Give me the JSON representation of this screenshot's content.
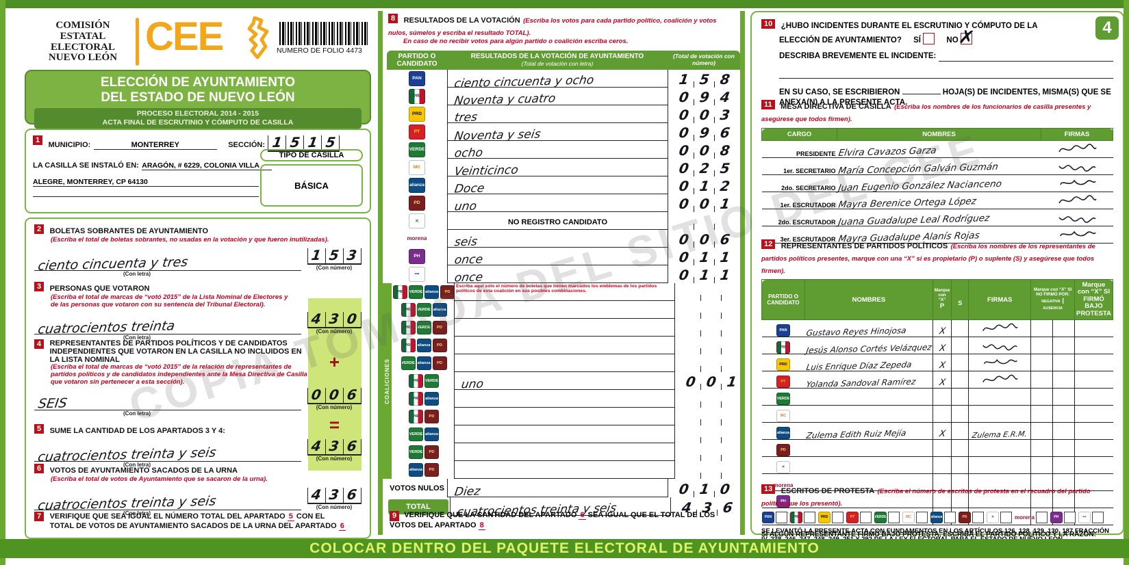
{
  "watermark": "COPIA TOMADA DEL SITIO DEL CEE",
  "footer_bar": "COLOCAR DENTRO DEL PAQUETE ELECTORAL DE AYUNTAMIENTO",
  "page_badge": "4",
  "labels": {
    "con_letra": "(Con letra)",
    "con_numero": "(Con número)"
  },
  "header": {
    "org_lines": [
      "COMISIÓN",
      "ESTATAL",
      "ELECTORAL",
      "NUEVO LEÓN"
    ],
    "logo_text": "CEE",
    "folio_label": "NUMERO DE FOLIO 4473",
    "title1": "ELECCIÓN DE AYUNTAMIENTO",
    "title2": "DEL ESTADO DE NUEVO LEÓN",
    "subtitle1": "PROCESO ELECTORAL  2014 - 2015",
    "subtitle2": "ACTA FINAL DE ESCRUTINIO Y CÓMPUTO DE CASILLA"
  },
  "parties": [
    {
      "id": "pan",
      "name": "PAN",
      "abbr": "PAN",
      "bg": "#1b3f94",
      "fg": "#ffffff"
    },
    {
      "id": "pri",
      "name": "PRI",
      "abbr": "PRI",
      "bg": "#ffffff",
      "fg": "#333333",
      "cls": "tri"
    },
    {
      "id": "prd",
      "name": "PRD",
      "abbr": "PRD",
      "bg": "#f6c700",
      "fg": "#000000"
    },
    {
      "id": "pt",
      "name": "PT",
      "abbr": "PT",
      "bg": "#d42128",
      "fg": "#ffd500"
    },
    {
      "id": "verde",
      "name": "PARTIDO VERDE",
      "abbr": "VERDE",
      "bg": "#1e7a34",
      "fg": "#ffffff"
    },
    {
      "id": "mc",
      "name": "MOVIMIENTO CIUDADANO",
      "abbr": "MC",
      "bg": "#ffffff",
      "fg": "#f57921"
    },
    {
      "id": "alianza",
      "name": "NUEVA ALIANZA",
      "abbr": "alianza",
      "bg": "#0f4c81",
      "fg": "#ffffff"
    },
    {
      "id": "democrata",
      "name": "DEMÓCRATA",
      "abbr": "PD",
      "bg": "#7a1f1f",
      "fg": "#ffd27f"
    },
    {
      "id": "cruzada",
      "name": "CRUZADA CIUDADANA",
      "abbr": "✕",
      "bg": "#ffffff",
      "fg": "#2a7a2a"
    },
    {
      "id": "morena",
      "name": "morena",
      "abbr": "morena",
      "bg": "transparent",
      "fg": "#8a1538",
      "cls": "textonly"
    },
    {
      "id": "humanista",
      "name": "HUMANISTA",
      "abbr": "PH",
      "bg": "#7a2d8c",
      "fg": "#ffffff"
    },
    {
      "id": "encuentro",
      "name": "ENCUENTRO SOCIAL",
      "abbr": "•••",
      "bg": "#ffffff",
      "fg": "#223f8f"
    }
  ],
  "section1": {
    "num": "1",
    "municipio_label": "MUNICIPIO:",
    "municipio_value": "MONTERREY",
    "seccion_label": "SECCIÓN:",
    "seccion_digits": "1515",
    "casilla_label": "LA CASILLA SE INSTALÓ EN:",
    "casilla_line1": "ARAGÓN, # 6229, COLONIA VILLA",
    "casilla_line2": "ALEGRE, MONTERREY, CP 64130",
    "tipo_casilla_label": "TIPO DE CASILLA",
    "tipo_casilla_value": "BÁSICA"
  },
  "section2": {
    "num": "2",
    "title": "BOLETAS SOBRANTES DE AYUNTAMIENTO",
    "hint": "(Escriba el total de boletas sobrantes, no usadas en la votación y que fueron inutilizadas).",
    "letra": "ciento cincuenta y tres",
    "numero": "153"
  },
  "section3": {
    "num": "3",
    "title": "PERSONAS QUE VOTARON",
    "hint": "(Escriba el total de marcas de “votó 2015” de la Lista Nominal de Electores y de las personas que votaron con su sentencia del Tribunal Electoral).",
    "letra": "cuatrocientos treinta",
    "numero": "430"
  },
  "section4": {
    "num": "4",
    "title": "REPRESENTANTES DE PARTIDOS POLÍTICOS Y DE CANDIDATOS INDEPENDIENTES QUE VOTARON EN LA CASILLA NO INCLUIDOS EN LA LISTA NOMINAL",
    "hint": "(Escriba el total de marcas de “votó 2015” de la relación de representantes de partidos políticos y de candidatos independientes ante la Mesa Directiva de Casilla que votaron sin pertenecer a esta sección).",
    "letra": "SEIS",
    "numero": "006",
    "plus_symbol": "+"
  },
  "section5": {
    "num": "5",
    "title": "SUME LA CANTIDAD DE LOS APARTADOS 3 Y 4:",
    "letra": "cuatrocientos treinta y seis",
    "numero": "436",
    "equals_symbol": "="
  },
  "section6": {
    "num": "6",
    "title": "VOTOS DE AYUNTAMIENTO SACADOS DE LA URNA",
    "hint": "(Escriba el total de votos de Ayuntamiento que se sacaron de la urna).",
    "letra": "cuatrocientos treinta y seis",
    "numero": "436"
  },
  "section7": {
    "num": "7",
    "text1": "VERIFIQUE QUE SEA IGUAL EL NÚMERO TOTAL DEL APARTADO",
    "ref1": "5",
    "text2": "CON EL TOTAL DE VOTOS DE AYUNTAMIENTO SACADOS DE LA URNA DEL APARTADO",
    "ref2": "6"
  },
  "section8": {
    "num": "8",
    "title": "RESULTADOS DE LA VOTACIÓN",
    "hint1": "(Escriba los votos para cada partido político, coalición y votos nulos, súmelos y escriba el resultado TOTAL).",
    "hint2": "En caso de no recibir votos para algún partido o coalición escriba ceros.",
    "col1": "PARTIDO O CANDIDATO",
    "col2": "RESULTADOS DE LA VOTACIÓN DE AYUNTAMIENTO",
    "col2b": "(Total de votación con letra)",
    "col3": "(Total de votación con número)",
    "rows": [
      {
        "logos": [
          "pan"
        ],
        "letra": "ciento cincuenta y ocho",
        "numero": "158"
      },
      {
        "logos": [
          "pri"
        ],
        "letra": "Noventa y cuatro",
        "numero": "094"
      },
      {
        "logos": [
          "prd"
        ],
        "letra": "tres",
        "numero": "003"
      },
      {
        "logos": [
          "pt"
        ],
        "letra": "Noventa y seis",
        "numero": "096"
      },
      {
        "logos": [
          "verde"
        ],
        "letra": "ocho",
        "numero": "008"
      },
      {
        "logos": [
          "mc"
        ],
        "letra": "Veinticinco",
        "numero": "025"
      },
      {
        "logos": [
          "alianza"
        ],
        "letra": "Doce",
        "numero": "012"
      },
      {
        "logos": [
          "democrata"
        ],
        "letra": "uno",
        "numero": "001"
      },
      {
        "logos": [
          "cruzada"
        ],
        "special": "NO REGISTRO CANDIDATO",
        "numero": ""
      },
      {
        "logos": [
          "morena"
        ],
        "letra": "seis",
        "numero": "006"
      },
      {
        "logos": [
          "humanista"
        ],
        "letra": "once",
        "numero": "011"
      },
      {
        "logos": [
          "encuentro"
        ],
        "letra": "once",
        "numero": "011"
      }
    ],
    "coaliciones": {
      "side_label": "COALICIONES",
      "note": "Escriba aquí solo el número de boletas que tienen marcados los emblemas de los partidos políticos de esta coalición en sus posibles combinaciones.",
      "rows": [
        {
          "logos": [
            "pri",
            "verde",
            "alianza",
            "democrata"
          ],
          "letra": "",
          "numero": ""
        },
        {
          "logos": [
            "pri",
            "verde",
            "alianza"
          ],
          "letra": "",
          "numero": ""
        },
        {
          "logos": [
            "pri",
            "verde",
            "democrata"
          ],
          "letra": "",
          "numero": ""
        },
        {
          "logos": [
            "pri",
            "alianza",
            "democrata"
          ],
          "letra": "",
          "numero": ""
        },
        {
          "logos": [
            "verde",
            "alianza",
            "democrata"
          ],
          "letra": "",
          "numero": ""
        },
        {
          "logos": [
            "pri",
            "verde"
          ],
          "letra": "uno",
          "numero": "001"
        },
        {
          "logos": [
            "pri",
            "alianza"
          ],
          "letra": "",
          "numero": ""
        },
        {
          "logos": [
            "pri",
            "democrata"
          ],
          "letra": "",
          "numero": ""
        },
        {
          "logos": [
            "verde",
            "alianza"
          ],
          "letra": "",
          "numero": ""
        },
        {
          "logos": [
            "verde",
            "democrata"
          ],
          "letra": "",
          "numero": ""
        },
        {
          "logos": [
            "alianza",
            "democrata"
          ],
          "letra": "",
          "numero": ""
        }
      ]
    },
    "votos_nulos": {
      "label": "VOTOS NULOS",
      "letra": "Diez",
      "numero": "010"
    },
    "total": {
      "label": "TOTAL",
      "letra": "cuatrocientos treinta y seis",
      "numero": "436"
    }
  },
  "section9": {
    "num": "9",
    "text1": "VERIFIQUE QUE LA CANTIDAD DEL APARTADO",
    "ref1": "6",
    "text2": "SEA IGUAL QUE EL TOTAL DE LOS VOTOS DEL APARTADO",
    "ref2": "8"
  },
  "section10": {
    "num": "10",
    "question1": "¿HUBO INCIDENTES DURANTE EL ESCRUTINIO Y CÓMPUTO DE LA",
    "question2": "ELECCIÓN DE AYUNTAMIENTO?",
    "si_label": "SÍ",
    "no_label": "NO",
    "no_checked": true,
    "describe_label": "DESCRIBA BREVEMENTE EL INCIDENTE:",
    "encase1": "EN SU CASO, SE ESCRIBIERON",
    "encase2": "HOJA(S) DE INCIDENTES, MISMA(S) QUE SE",
    "encase3": "ANEXA(N) A LA PRESENTE ACTA."
  },
  "section11": {
    "num": "11",
    "title": "MESA DIRECTIVA DE CASILLA",
    "hint": "(Escriba los nombres de los funcionarios de casilla presentes y asegúrese que todos firmen).",
    "headers": {
      "cargo": "CARGO",
      "nombres": "NOMBRES",
      "firmas": "FIRMAS"
    },
    "rows": [
      {
        "cargo": "PRESIDENTE",
        "nombre": "Elvira Cavazos Garza",
        "firma": true
      },
      {
        "cargo": "1er. SECRETARIO",
        "nombre": "María Concepción Galván Guzmán",
        "firma": true
      },
      {
        "cargo": "2do. SECRETARIO",
        "nombre": "Juan Eugenio González Nacianceno",
        "firma": true
      },
      {
        "cargo": "1er. ESCRUTADOR",
        "nombre": "Mayra Berenice Ortega López",
        "firma": true
      },
      {
        "cargo": "2do. ESCRUTADOR",
        "nombre": "Juana Guadalupe Leal Rodríguez",
        "firma": true
      },
      {
        "cargo": "3er. ESCRUTADOR",
        "nombre": "Mayra Guadalupe Alanís Rojas",
        "firma": true
      }
    ]
  },
  "section12": {
    "num": "12",
    "title": "REPRESENTANTES DE PARTIDOS POLÍTICOS",
    "hint": "(Escriba los nombres de los representantes de partidos políticos presentes, marque con una “X” si es propietario (P) o suplente (S) y asegúrese que todos firmen).",
    "headers": {
      "partido": "PARTIDO O CANDIDATO",
      "nombres": "NOMBRES",
      "marque": "Marque con “X”",
      "p": "P",
      "s": "S",
      "firmas": "FIRMAS",
      "nofirmo": "Marque con “X” SI NO FIRMÓ POR:",
      "negativa": "NEGATIVA",
      "ausencia": "AUSENCIA",
      "protesta": "Marque con “X” SI FIRMÓ BAJO PROTESTA"
    },
    "rows": [
      {
        "party": "pan",
        "nombre": "Gustavo Reyes Hinojosa",
        "p": "X",
        "s": "",
        "firma": true
      },
      {
        "party": "pri",
        "nombre": "Jesús Alonso Cortés Velázquez",
        "p": "X",
        "s": "",
        "firma": true
      },
      {
        "party": "prd",
        "nombre": "Luis Enrique Díaz Zepeda",
        "p": "X",
        "s": "",
        "firma": true
      },
      {
        "party": "pt",
        "nombre": "Yolanda Sandoval Ramírez",
        "p": "X",
        "s": "",
        "firma": true
      },
      {
        "party": "verde",
        "nombre": "",
        "p": "",
        "s": "",
        "firma": false
      },
      {
        "party": "mc",
        "nombre": "",
        "p": "",
        "s": "",
        "firma": false
      },
      {
        "party": "alianza",
        "nombre": "Zulema Edith Ruiz Mejía",
        "p": "X",
        "s": "",
        "firma": true,
        "firma_text": "Zulema E.R.M."
      },
      {
        "party": "democrata",
        "nombre": "",
        "p": "",
        "s": "",
        "firma": false
      },
      {
        "party": "cruzada",
        "nombre": "",
        "p": "",
        "s": "",
        "firma": false
      },
      {
        "party": "morena",
        "nombre": "",
        "p": "",
        "s": "",
        "firma": false
      },
      {
        "party": "humanista",
        "nombre": "",
        "p": "",
        "s": "",
        "firma": false
      },
      {
        "party": "encuentro",
        "nombre": "",
        "p": "",
        "s": "",
        "firma": false
      }
    ],
    "protest_line": "SI ALGÚN REPRESENTANTE FIRMÓ BAJO PROTESTA, ESCRIBA EL PARTIDO POLÍTICO Y LA RAZÓN:"
  },
  "section13": {
    "num": "13",
    "title": "ESCRITOS DE PROTESTA",
    "hint": "(Escriba el número de escritos de protesta en el recuadro del partido político que los presentó)."
  },
  "legal": "SE LEVANTÓ LA PRESENTE ACTA CON FUNDAMENTOS EN LOS ARTÍCULOS 126, 128, 129, 130, 187 FRACCIÓN IV, 238, 246, 247, 248, 249, 251 Y 292 DE LA LEY ELECTORAL PARA EL ESTADO DE NUEVO LEÓN.",
  "colors": {
    "form_green": "#79b344",
    "dark_green": "#4f9320",
    "header_green": "#5f9d32",
    "highlight_green": "#cde579",
    "badge_red": "#b5121c",
    "hint_red": "#c9001d",
    "cee_orange": "#f2a71b",
    "footer_text": "#dff36c"
  }
}
